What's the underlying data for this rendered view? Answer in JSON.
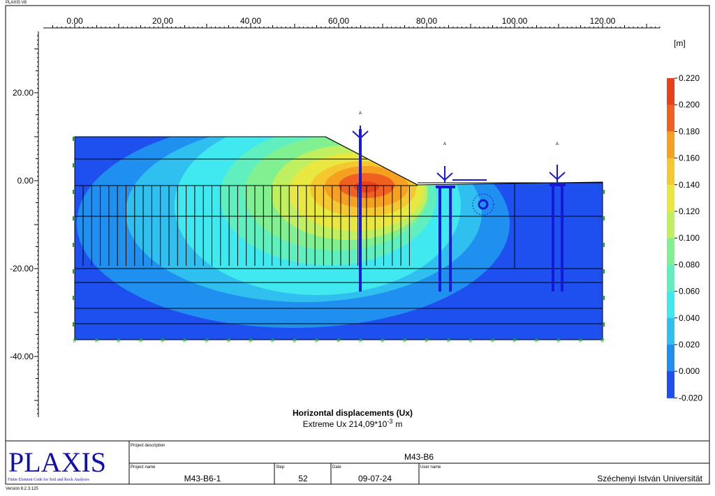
{
  "header": {
    "app": "PLAXIS V8"
  },
  "axes": {
    "x_labels": [
      "0.00",
      "20.00",
      "40.00",
      "60.00",
      "80.00",
      "100.00",
      "120.00"
    ],
    "y_labels": [
      "20.00",
      "0.00",
      "-20.00",
      "-40.00"
    ]
  },
  "structure_labels": [
    "A",
    "A",
    "A"
  ],
  "legend": {
    "unit": "[m]",
    "labels": [
      "0.220",
      "0.200",
      "0.180",
      "0.160",
      "0.140",
      "0.120",
      "0.100",
      "0.080",
      "0.060",
      "0.040",
      "0.020",
      "0.000",
      "-0.020"
    ],
    "colors": [
      "#e8401a",
      "#f06020",
      "#f5a020",
      "#f5c830",
      "#e8e840",
      "#c0f060",
      "#80f090",
      "#60f0c0",
      "#40e8f0",
      "#30c0f0",
      "#2090f0",
      "#1e50f0"
    ]
  },
  "caption": {
    "title": "Horizontal displacements (Ux)",
    "extreme": "Extreme Ux 214,09*10",
    "exponent": "-3",
    "unit": "m"
  },
  "title_block": {
    "logo": "PLAXIS",
    "tagline": "Finite Element Code for Soil and Rock Analyses",
    "project_description_label": "Project description",
    "project_description": "M43-B6",
    "project_name_label": "Project name",
    "project_name": "M43-B6-1",
    "step_label": "Step",
    "step": "52",
    "date_label": "Date",
    "date": "09-07-24",
    "user_name_label": "User name",
    "user_name": "Széchenyi István Universität"
  },
  "footer": {
    "version": "Version 8.2.3.125"
  }
}
